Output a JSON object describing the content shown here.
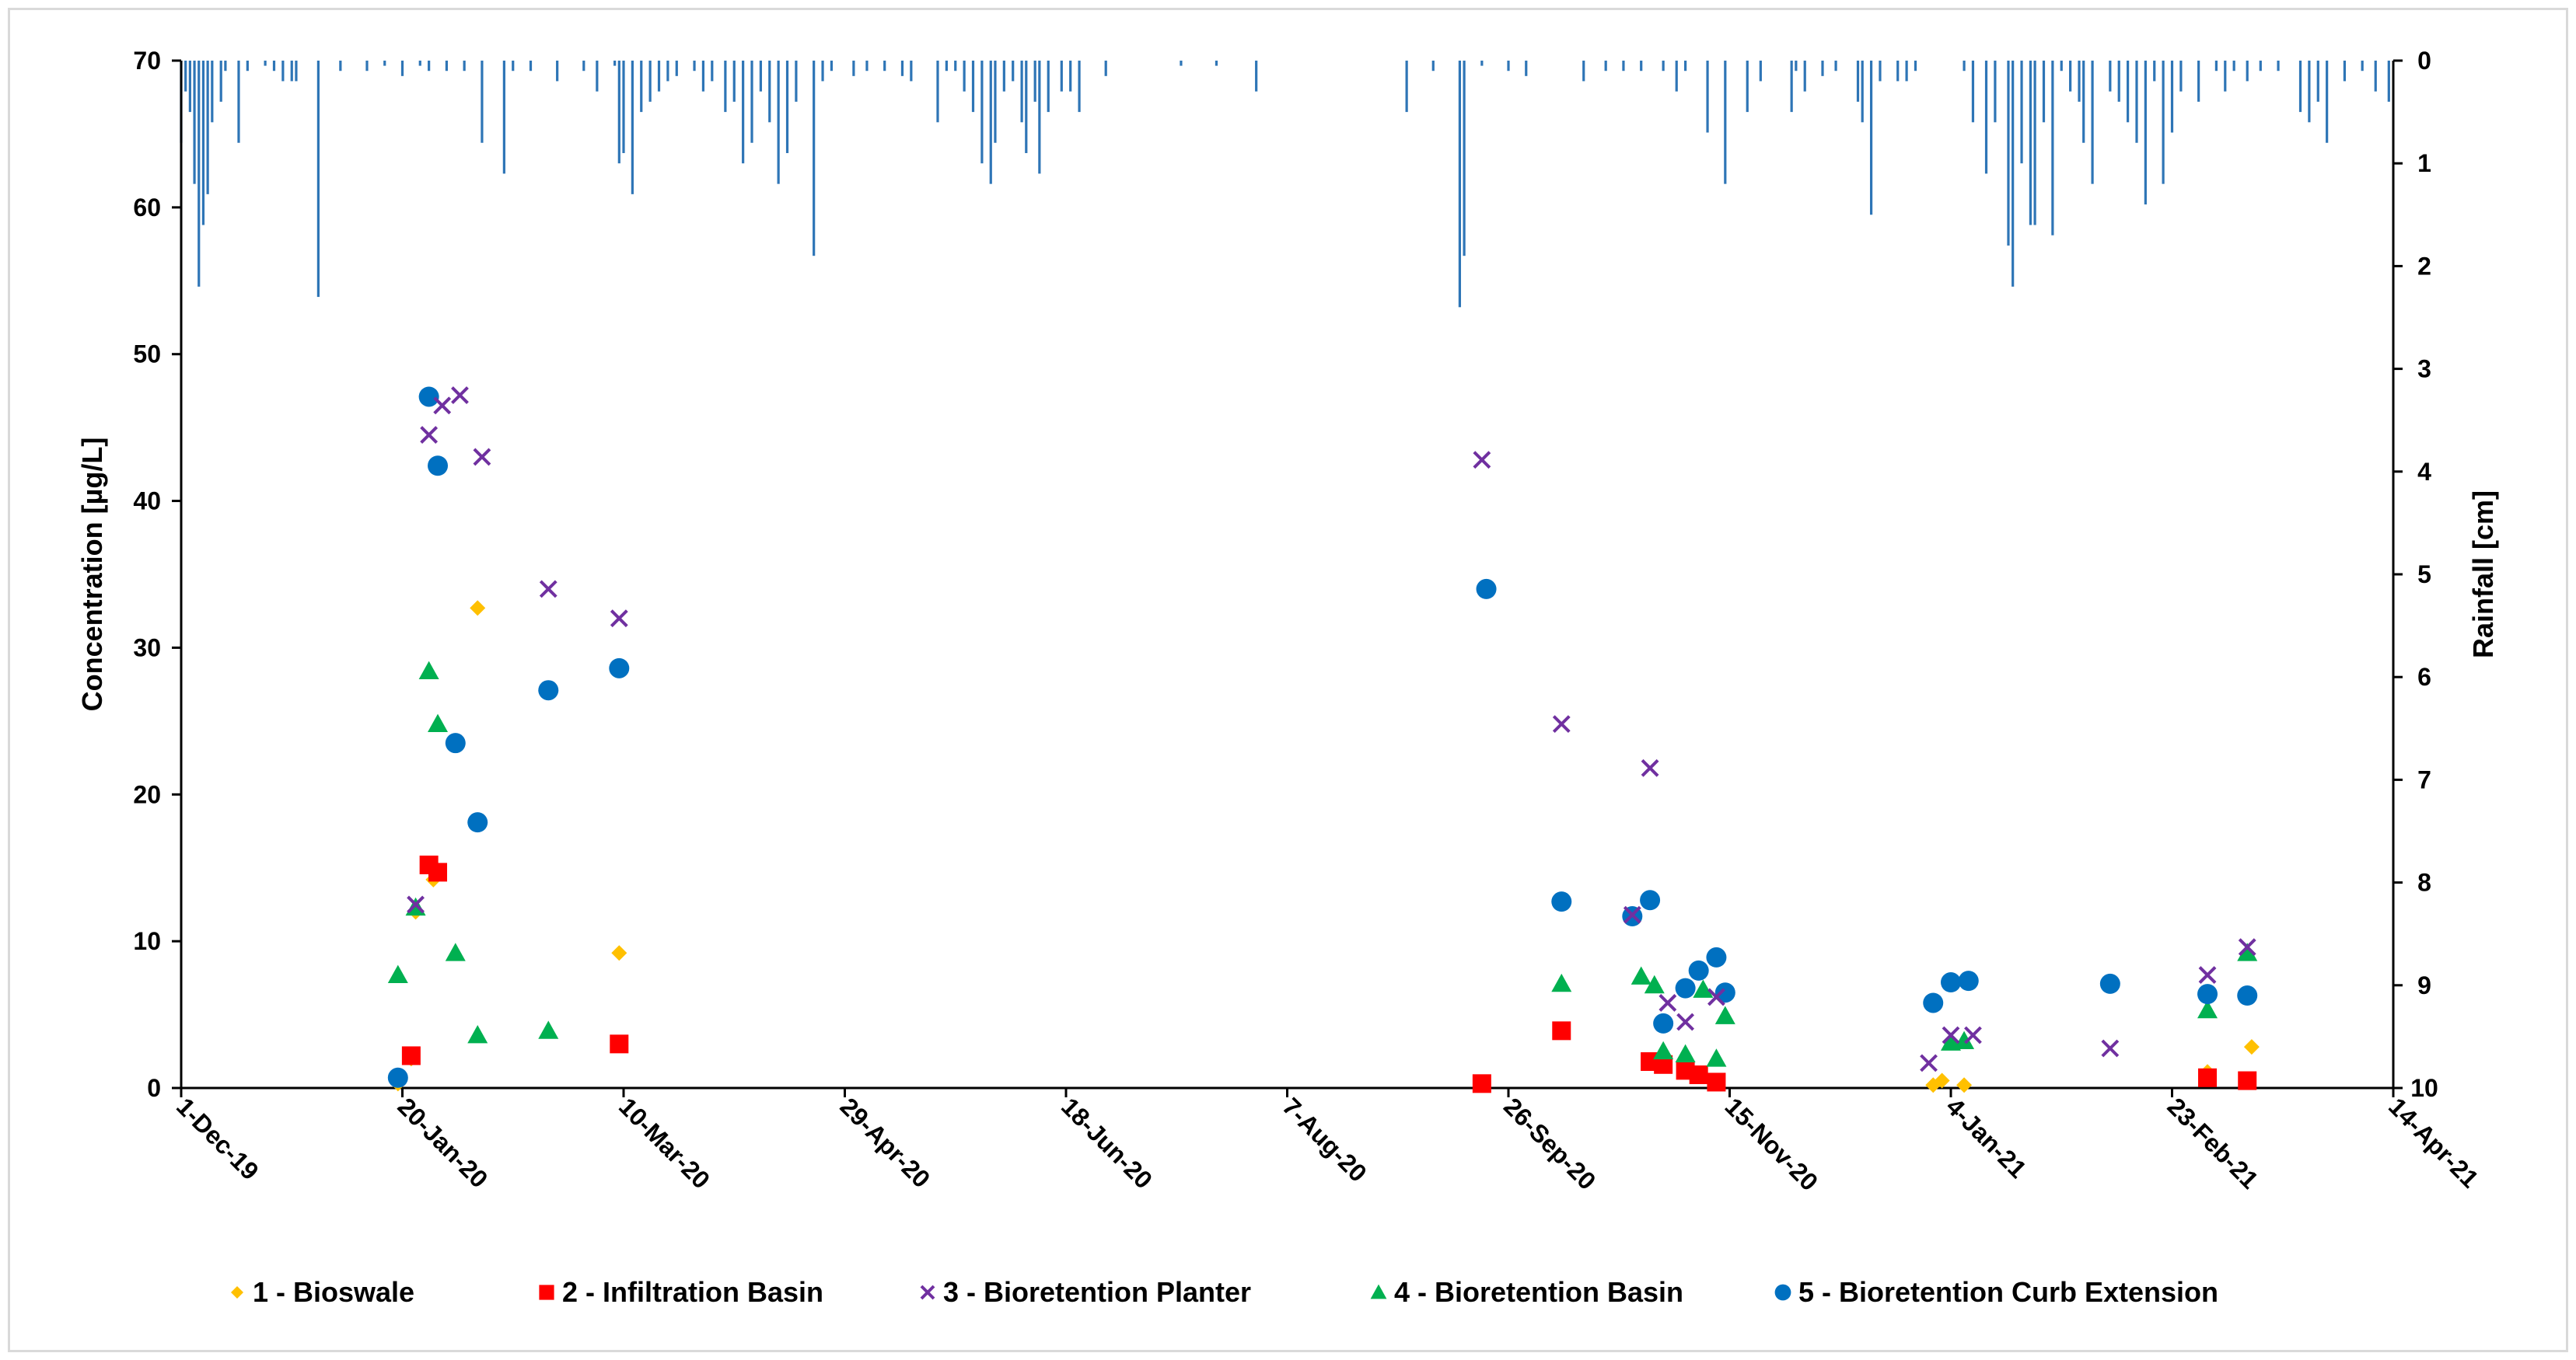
{
  "chart_data": {
    "type": "scatter",
    "title": "",
    "ylabel": "Concentration [µg/L]",
    "y2label": "Rainfall [cm]",
    "ylim": [
      0,
      70
    ],
    "y2lim": [
      0,
      10
    ],
    "y2_inverted": true,
    "xlim": [
      "2019-12-01",
      "2021-04-14"
    ],
    "x_ticks": [
      "1-Dec-19",
      "20-Jan-20",
      "10-Mar-20",
      "29-Apr-20",
      "18-Jun-20",
      "7-Aug-20",
      "26-Sep-20",
      "15-Nov-20",
      "4-Jan-21",
      "23-Feb-21",
      "14-Apr-21"
    ],
    "y_ticks": [
      "0",
      "10",
      "20",
      "30",
      "40",
      "50",
      "60",
      "70"
    ],
    "y2_ticks": [
      "0",
      "1",
      "2",
      "3",
      "4",
      "5",
      "6",
      "7",
      "8",
      "9",
      "10"
    ],
    "grid": false,
    "legend_position": "bottom",
    "series": [
      {
        "name": "1 - Bioswale",
        "marker": "diamond",
        "color": "#FFC000",
        "points": [
          [
            "2020-01-19",
            0.3
          ],
          [
            "2020-01-22",
            2.0
          ],
          [
            "2020-01-23",
            12.0
          ],
          [
            "2020-01-27",
            14.2
          ],
          [
            "2020-02-06",
            32.7
          ],
          [
            "2020-03-09",
            9.2
          ],
          [
            "2020-12-31",
            0.2
          ],
          [
            "2021-01-02",
            0.5
          ],
          [
            "2021-01-07",
            0.2
          ],
          [
            "2021-03-03",
            1.1
          ],
          [
            "2021-03-13",
            2.8
          ]
        ]
      },
      {
        "name": "2 - Infiltration Basin",
        "marker": "square",
        "color": "#FF0000",
        "points": [
          [
            "2020-01-22",
            2.2
          ],
          [
            "2020-01-26",
            15.2
          ],
          [
            "2020-01-28",
            14.7
          ],
          [
            "2020-03-09",
            3.0
          ],
          [
            "2020-09-20",
            0.3
          ],
          [
            "2020-10-08",
            3.9
          ],
          [
            "2020-10-28",
            1.8
          ],
          [
            "2020-10-31",
            1.6
          ],
          [
            "2020-11-05",
            1.2
          ],
          [
            "2020-11-08",
            0.9
          ],
          [
            "2020-11-12",
            0.4
          ],
          [
            "2021-03-03",
            0.7
          ],
          [
            "2021-03-12",
            0.5
          ]
        ]
      },
      {
        "name": "3 - Bioretention Planter",
        "marker": "x",
        "color": "#7030A0",
        "points": [
          [
            "2020-01-23",
            12.5
          ],
          [
            "2020-01-26",
            44.5
          ],
          [
            "2020-01-29",
            46.5
          ],
          [
            "2020-02-02",
            47.2
          ],
          [
            "2020-02-07",
            43.0
          ],
          [
            "2020-02-22",
            34.0
          ],
          [
            "2020-03-09",
            32.0
          ],
          [
            "2020-09-20",
            42.8
          ],
          [
            "2020-10-08",
            24.8
          ],
          [
            "2020-10-24",
            11.8
          ],
          [
            "2020-10-28",
            21.8
          ],
          [
            "2020-11-01",
            5.8
          ],
          [
            "2020-11-05",
            4.5
          ],
          [
            "2020-11-12",
            6.2
          ],
          [
            "2020-12-30",
            1.7
          ],
          [
            "2021-01-04",
            3.6
          ],
          [
            "2021-01-09",
            3.6
          ],
          [
            "2021-02-09",
            2.7
          ],
          [
            "2021-03-03",
            7.7
          ],
          [
            "2021-03-12",
            9.6
          ]
        ]
      },
      {
        "name": "4 - Bioretention Basin",
        "marker": "triangle",
        "color": "#00B050",
        "points": [
          [
            "2020-01-19",
            7.7
          ],
          [
            "2020-01-23",
            12.3
          ],
          [
            "2020-01-26",
            28.4
          ],
          [
            "2020-01-28",
            24.8
          ],
          [
            "2020-02-01",
            9.2
          ],
          [
            "2020-02-06",
            3.6
          ],
          [
            "2020-02-22",
            3.9
          ],
          [
            "2020-10-08",
            7.1
          ],
          [
            "2020-10-26",
            7.6
          ],
          [
            "2020-10-29",
            7.0
          ],
          [
            "2020-10-31",
            2.5
          ],
          [
            "2020-11-05",
            2.3
          ],
          [
            "2020-11-09",
            6.7
          ],
          [
            "2020-11-12",
            2.0
          ],
          [
            "2020-11-14",
            4.9
          ],
          [
            "2021-01-04",
            3.1
          ],
          [
            "2021-01-07",
            3.2
          ],
          [
            "2021-03-03",
            5.3
          ],
          [
            "2021-03-12",
            9.2
          ]
        ]
      },
      {
        "name": "5 - Bioretention Curb Extension",
        "marker": "circle",
        "color": "#0070C0",
        "points": [
          [
            "2020-01-19",
            0.7
          ],
          [
            "2020-01-26",
            47.1
          ],
          [
            "2020-01-28",
            42.4
          ],
          [
            "2020-02-01",
            23.5
          ],
          [
            "2020-02-06",
            18.1
          ],
          [
            "2020-02-22",
            27.1
          ],
          [
            "2020-03-09",
            28.6
          ],
          [
            "2020-09-21",
            34.0
          ],
          [
            "2020-10-08",
            12.7
          ],
          [
            "2020-10-24",
            11.7
          ],
          [
            "2020-10-28",
            12.8
          ],
          [
            "2020-10-31",
            4.4
          ],
          [
            "2020-11-05",
            6.8
          ],
          [
            "2020-11-08",
            8.0
          ],
          [
            "2020-11-12",
            8.9
          ],
          [
            "2020-11-14",
            6.5
          ],
          [
            "2020-12-31",
            5.8
          ],
          [
            "2021-01-04",
            7.2
          ],
          [
            "2021-01-08",
            7.3
          ],
          [
            "2021-02-09",
            7.1
          ],
          [
            "2021-03-03",
            6.4
          ],
          [
            "2021-03-12",
            6.3
          ]
        ]
      },
      {
        "name": "Rainfall",
        "type": "bar",
        "axis": "y2",
        "color": "#2E75B6",
        "points": [
          [
            "2019-12-01",
            0.8
          ],
          [
            "2019-12-02",
            0.3
          ],
          [
            "2019-12-03",
            0.5
          ],
          [
            "2019-12-04",
            1.2
          ],
          [
            "2019-12-05",
            2.2
          ],
          [
            "2019-12-06",
            1.6
          ],
          [
            "2019-12-07",
            1.3
          ],
          [
            "2019-12-08",
            0.6
          ],
          [
            "2019-12-10",
            0.4
          ],
          [
            "2019-12-11",
            0.1
          ],
          [
            "2019-12-14",
            0.8
          ],
          [
            "2019-12-16",
            0.1
          ],
          [
            "2019-12-20",
            0.05
          ],
          [
            "2019-12-22",
            0.1
          ],
          [
            "2019-12-24",
            0.2
          ],
          [
            "2019-12-26",
            0.2
          ],
          [
            "2019-12-27",
            0.2
          ],
          [
            "2020-01-01",
            2.3
          ],
          [
            "2020-01-06",
            0.1
          ],
          [
            "2020-01-12",
            0.1
          ],
          [
            "2020-01-16",
            0.05
          ],
          [
            "2020-01-20",
            0.15
          ],
          [
            "2020-01-24",
            0.05
          ],
          [
            "2020-01-26",
            0.1
          ],
          [
            "2020-01-30",
            0.1
          ],
          [
            "2020-02-03",
            0.1
          ],
          [
            "2020-02-07",
            0.8
          ],
          [
            "2020-02-12",
            1.1
          ],
          [
            "2020-02-14",
            0.1
          ],
          [
            "2020-02-18",
            0.1
          ],
          [
            "2020-02-24",
            0.2
          ],
          [
            "2020-03-01",
            0.1
          ],
          [
            "2020-03-04",
            0.3
          ],
          [
            "2020-03-08",
            0.05
          ],
          [
            "2020-03-09",
            1.0
          ],
          [
            "2020-03-10",
            0.9
          ],
          [
            "2020-03-12",
            1.3
          ],
          [
            "2020-03-14",
            0.5
          ],
          [
            "2020-03-16",
            0.4
          ],
          [
            "2020-03-18",
            0.3
          ],
          [
            "2020-03-20",
            0.2
          ],
          [
            "2020-03-22",
            0.15
          ],
          [
            "2020-03-26",
            0.1
          ],
          [
            "2020-03-28",
            0.3
          ],
          [
            "2020-03-30",
            0.2
          ],
          [
            "2020-04-02",
            0.5
          ],
          [
            "2020-04-04",
            0.4
          ],
          [
            "2020-04-06",
            1.0
          ],
          [
            "2020-04-08",
            0.8
          ],
          [
            "2020-04-10",
            0.3
          ],
          [
            "2020-04-12",
            0.6
          ],
          [
            "2020-04-14",
            1.2
          ],
          [
            "2020-04-16",
            0.9
          ],
          [
            "2020-04-18",
            0.4
          ],
          [
            "2020-04-22",
            1.9
          ],
          [
            "2020-04-24",
            0.2
          ],
          [
            "2020-04-26",
            0.1
          ],
          [
            "2020-05-01",
            0.15
          ],
          [
            "2020-05-04",
            0.1
          ],
          [
            "2020-05-08",
            0.1
          ],
          [
            "2020-05-12",
            0.15
          ],
          [
            "2020-05-14",
            0.2
          ],
          [
            "2020-05-20",
            0.6
          ],
          [
            "2020-05-22",
            0.1
          ],
          [
            "2020-05-24",
            0.1
          ],
          [
            "2020-05-26",
            0.3
          ],
          [
            "2020-05-28",
            0.5
          ],
          [
            "2020-05-30",
            1.0
          ],
          [
            "2020-06-01",
            1.2
          ],
          [
            "2020-06-02",
            0.8
          ],
          [
            "2020-06-04",
            0.3
          ],
          [
            "2020-06-06",
            0.2
          ],
          [
            "2020-06-08",
            0.6
          ],
          [
            "2020-06-09",
            0.9
          ],
          [
            "2020-06-11",
            0.4
          ],
          [
            "2020-06-12",
            1.1
          ],
          [
            "2020-06-14",
            0.5
          ],
          [
            "2020-06-17",
            0.3
          ],
          [
            "2020-06-19",
            0.3
          ],
          [
            "2020-06-21",
            0.5
          ],
          [
            "2020-06-27",
            0.15
          ],
          [
            "2020-07-14",
            0.05
          ],
          [
            "2020-07-22",
            0.05
          ],
          [
            "2020-07-31",
            0.3
          ],
          [
            "2020-09-09",
            0.1
          ],
          [
            "2020-09-30",
            0.15
          ],
          [
            "2020-10-26",
            0.1
          ],
          [
            "2020-10-31",
            0.1
          ],
          [
            "2020-11-03",
            0.3
          ],
          [
            "2020-11-05",
            0.1
          ],
          [
            "2020-11-10",
            0.7
          ],
          [
            "2020-11-14",
            1.2
          ],
          [
            "2020-11-19",
            0.5
          ],
          [
            "2020-11-22",
            0.2
          ],
          [
            "2020-11-29",
            0.5
          ],
          [
            "2020-11-30",
            0.1
          ],
          [
            "2020-12-02",
            0.3
          ],
          [
            "2020-12-06",
            0.15
          ],
          [
            "2020-12-09",
            0.1
          ],
          [
            "2020-12-14",
            0.4
          ],
          [
            "2020-12-15",
            0.6
          ],
          [
            "2020-12-17",
            1.5
          ],
          [
            "2020-12-19",
            0.2
          ],
          [
            "2020-12-23",
            0.2
          ],
          [
            "2020-12-25",
            0.2
          ],
          [
            "2020-12-27",
            0.1
          ],
          [
            "2021-01-07",
            0.1
          ],
          [
            "2021-01-09",
            0.6
          ],
          [
            "2021-01-12",
            1.1
          ],
          [
            "2021-01-14",
            0.6
          ],
          [
            "2021-01-17",
            1.8
          ],
          [
            "2021-01-18",
            2.2
          ],
          [
            "2021-01-20",
            1.0
          ],
          [
            "2021-01-22",
            1.6
          ],
          [
            "2021-01-23",
            1.6
          ],
          [
            "2021-01-25",
            0.6
          ],
          [
            "2021-01-27",
            1.7
          ],
          [
            "2021-01-29",
            0.1
          ],
          [
            "2021-01-31",
            0.3
          ],
          [
            "2021-02-02",
            0.4
          ],
          [
            "2021-02-03",
            0.8
          ],
          [
            "2021-02-05",
            1.2
          ],
          [
            "2021-02-09",
            0.3
          ],
          [
            "2021-02-11",
            0.4
          ],
          [
            "2021-02-13",
            0.6
          ],
          [
            "2021-02-15",
            0.8
          ],
          [
            "2021-02-17",
            1.4
          ],
          [
            "2021-02-19",
            0.2
          ],
          [
            "2021-02-21",
            1.2
          ],
          [
            "2021-02-23",
            0.7
          ],
          [
            "2021-02-25",
            0.3
          ],
          [
            "2021-03-01",
            0.4
          ],
          [
            "2021-03-05",
            0.1
          ],
          [
            "2021-03-07",
            0.3
          ],
          [
            "2021-03-09",
            0.1
          ],
          [
            "2021-03-12",
            0.2
          ],
          [
            "2021-03-15",
            0.1
          ],
          [
            "2021-03-19",
            0.1
          ],
          [
            "2021-03-24",
            0.5
          ],
          [
            "2021-03-26",
            0.6
          ],
          [
            "2021-03-28",
            0.4
          ],
          [
            "2021-03-30",
            0.8
          ],
          [
            "2021-04-03",
            0.2
          ],
          [
            "2021-04-07",
            0.1
          ],
          [
            "2021-04-10",
            0.3
          ],
          [
            "2021-04-13",
            0.4
          ],
          [
            "2020-09-20",
            0.05
          ],
          [
            "2020-09-26",
            0.1
          ],
          [
            "2020-10-13",
            0.2
          ],
          [
            "2020-10-18",
            0.1
          ],
          [
            "2020-10-22",
            0.1
          ],
          [
            "2020-09-15",
            2.4
          ],
          [
            "2020-09-16",
            1.9
          ],
          [
            "2020-09-03",
            0.5
          ]
        ]
      }
    ]
  }
}
